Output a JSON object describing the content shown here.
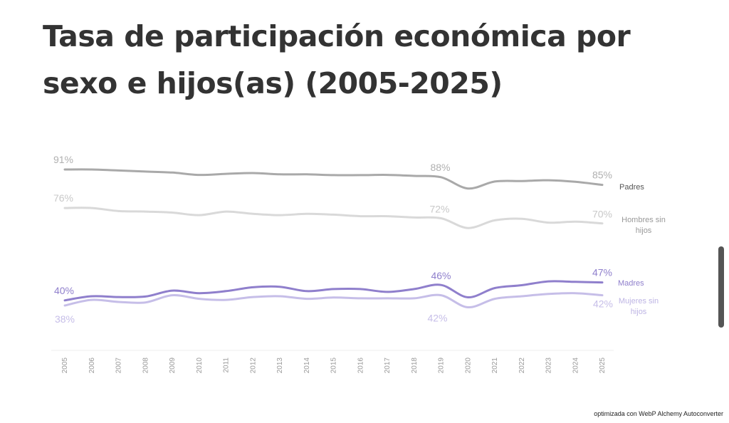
{
  "chart_data": {
    "type": "line",
    "title": "Tasa de participación económica por sexo e hijos(as) (2005-2025)",
    "x": [
      2005,
      2006,
      2007,
      2008,
      2009,
      2010,
      2011,
      2012,
      2013,
      2014,
      2015,
      2016,
      2017,
      2018,
      2019,
      2020,
      2021,
      2022,
      2023,
      2024,
      2025
    ],
    "ylim": [
      20,
      100
    ],
    "grid": false,
    "legend": "end-labels",
    "series": [
      {
        "name": "Padres",
        "color": "#a9a9a9",
        "values": [
          91,
          91,
          90.6,
          90.2,
          89.8,
          88.9,
          89.3,
          89.6,
          89.1,
          89.1,
          88.8,
          88.8,
          88.9,
          88.5,
          88,
          83.6,
          86.3,
          86.5,
          86.8,
          86.2,
          85
        ],
        "labels": [
          {
            "x": 2005,
            "text": "91%"
          },
          {
            "x": 2019,
            "text": "88%"
          },
          {
            "x": 2025,
            "text": "85%"
          }
        ]
      },
      {
        "name": "Hombres sin hijos",
        "color": "#d9d9d9",
        "values": [
          76,
          76,
          74.8,
          74.6,
          74.2,
          73.2,
          74.6,
          73.7,
          73.2,
          73.7,
          73.4,
          72.8,
          72.8,
          72.3,
          72,
          68.2,
          71.2,
          71.8,
          70.3,
          70.7,
          70
        ],
        "labels": [
          {
            "x": 2005,
            "text": "76%"
          },
          {
            "x": 2019,
            "text": "72%"
          },
          {
            "x": 2025,
            "text": "70%"
          }
        ]
      },
      {
        "name": "Madres",
        "color": "#8f7fcc",
        "values": [
          40,
          41.6,
          41.3,
          41.5,
          43.8,
          42.8,
          43.6,
          45.1,
          45.3,
          43.6,
          44.4,
          44.4,
          43.3,
          44.4,
          46,
          41.2,
          44.8,
          45.9,
          47.4,
          47.2,
          47
        ],
        "labels": [
          {
            "x": 2005,
            "text": "40%"
          },
          {
            "x": 2019,
            "text": "46%"
          },
          {
            "x": 2025,
            "text": "47%"
          }
        ]
      },
      {
        "name": "Mujeres sin hijos",
        "color": "#c6bee8",
        "values": [
          38,
          40.2,
          39.4,
          39.2,
          42,
          40.6,
          40.2,
          41.3,
          41.6,
          40.6,
          41.1,
          40.8,
          40.8,
          40.8,
          42,
          37.3,
          40.6,
          41.6,
          42.5,
          42.8,
          42
        ],
        "labels": [
          {
            "x": 2005,
            "text": "38%"
          },
          {
            "x": 2019,
            "text": "42%"
          },
          {
            "x": 2025,
            "text": "42%"
          }
        ]
      }
    ]
  },
  "footer": "optimizada con WebP Alchemy Autoconverter"
}
